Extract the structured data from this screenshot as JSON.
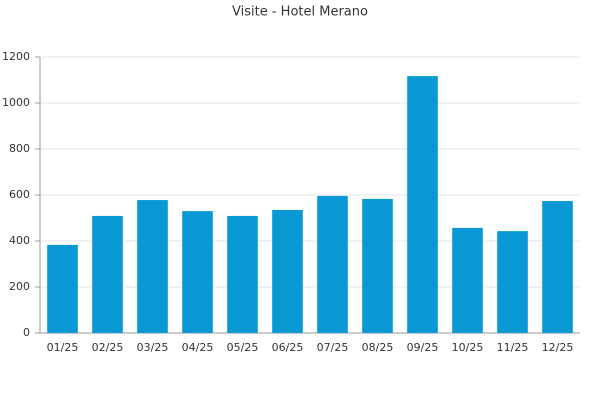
{
  "chart_data": {
    "type": "bar",
    "title": "Visite - Hotel Merano",
    "categories": [
      "01/25",
      "02/25",
      "03/25",
      "04/25",
      "05/25",
      "06/25",
      "07/25",
      "08/25",
      "09/25",
      "10/25",
      "11/25",
      "12/25"
    ],
    "values": [
      383,
      509,
      578,
      530,
      509,
      535,
      596,
      583,
      1117,
      457,
      443,
      574
    ],
    "color": "#0a98d4",
    "ylim": [
      0,
      1200
    ],
    "yticks": [
      0,
      200,
      400,
      600,
      800,
      1000,
      1200
    ],
    "grid": true
  }
}
